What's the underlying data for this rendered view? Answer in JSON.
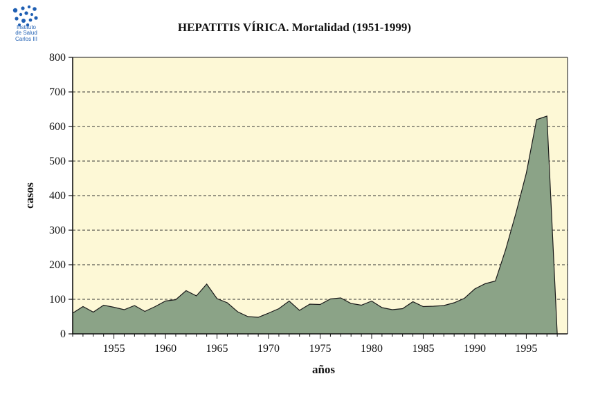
{
  "logo": {
    "mark": "isc",
    "lines": [
      "Instituto",
      "de Salud",
      "Carlos III"
    ],
    "color": "#1f5fb3"
  },
  "chart_data": {
    "type": "area",
    "title": "HEPATITIS VÍRICA. Mortalidad (1951-1999)",
    "xlabel": "años",
    "ylabel": "casos",
    "ylim": [
      0,
      800
    ],
    "yticks": [
      0,
      100,
      200,
      300,
      400,
      500,
      600,
      700,
      800
    ],
    "xticks": [
      1955,
      1960,
      1965,
      1970,
      1975,
      1980,
      1985,
      1990,
      1995
    ],
    "xlim": [
      1951,
      1999
    ],
    "grid": "horizontal dashed",
    "plot_background": "#fdf8d6",
    "fill_color": "#8ba387",
    "series": [
      {
        "x": [
          1951,
          1952,
          1953,
          1954,
          1955,
          1956,
          1957,
          1958,
          1959,
          1960,
          1961,
          1962,
          1963,
          1964,
          1965,
          1966,
          1967,
          1968,
          1969,
          1970,
          1971,
          1972,
          1973,
          1974,
          1975,
          1976,
          1977,
          1978,
          1979,
          1980,
          1981,
          1982,
          1983,
          1984,
          1985,
          1986,
          1987,
          1988,
          1989,
          1990,
          1991,
          1992,
          1993,
          1994,
          1995,
          1996,
          1997,
          1998
        ],
        "values": [
          60,
          79,
          63,
          83,
          77,
          70,
          82,
          65,
          79,
          95,
          99,
          125,
          110,
          144,
          102,
          90,
          64,
          50,
          48,
          60,
          73,
          95,
          68,
          86,
          85,
          101,
          104,
          88,
          83,
          95,
          76,
          70,
          73,
          93,
          79,
          80,
          82,
          90,
          103,
          130,
          145,
          153,
          244,
          350,
          465,
          620,
          630,
          0
        ]
      }
    ]
  }
}
